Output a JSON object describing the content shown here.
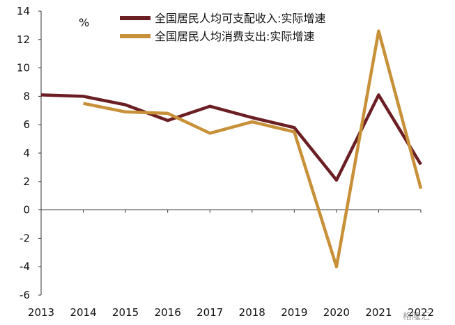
{
  "chart_data": {
    "type": "line",
    "unit": "%",
    "x": [
      "2013",
      "2014",
      "2015",
      "2016",
      "2017",
      "2018",
      "2019",
      "2020",
      "2021",
      "2022"
    ],
    "ylim": [
      -6,
      14
    ],
    "yticks": [
      -6,
      -4,
      -2,
      0,
      2,
      4,
      6,
      8,
      10,
      12,
      14
    ],
    "grid": false,
    "legend_position": "top",
    "series": [
      {
        "name": "全国居民人均可支配收入:实际增速",
        "color": "#6b1f24",
        "values": [
          8.1,
          8.0,
          7.4,
          6.3,
          7.3,
          6.5,
          5.8,
          2.1,
          8.1,
          3.2
        ]
      },
      {
        "name": "全国居民人均消费支出:实际增速",
        "color": "#c89139",
        "values": [
          null,
          7.5,
          6.9,
          6.8,
          5.4,
          6.2,
          5.5,
          -4.0,
          12.6,
          1.5
        ]
      }
    ]
  },
  "watermark": "格隆汇"
}
